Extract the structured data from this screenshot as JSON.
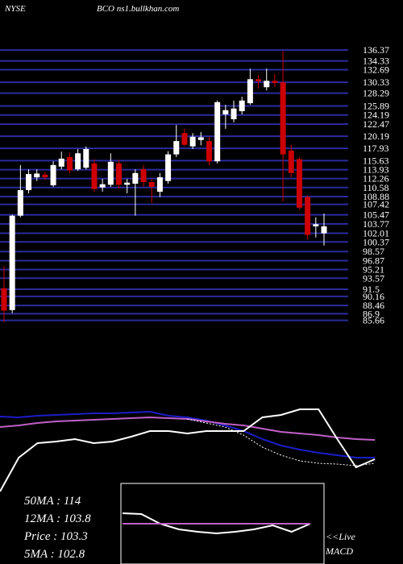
{
  "exchange": "NYSE",
  "title": "BCO ns1.bullkhan.com",
  "summary": [
    "50MA : 114",
    "12MA : 103.8",
    "Price : 103.3",
    "5MA : 102.8"
  ],
  "live": "<<Live",
  "panel_label": "MACD",
  "chart_data": [
    {
      "type": "candlestick",
      "up_color": "#ffffff",
      "down_color": "#cc0000",
      "grid": true,
      "grid_color": "#2b2b9e",
      "ylim": [
        85,
        137.9
      ],
      "yticks": [
        136.37,
        134.33,
        132.69,
        130.33,
        128.29,
        125.89,
        124.19,
        122.47,
        120.19,
        117.93,
        115.63,
        113.93,
        112.26,
        110.58,
        108.88,
        107.42,
        105.47,
        103.77,
        102.01,
        100.37,
        98.57,
        96.87,
        95.21,
        93.57,
        91.5,
        90.16,
        88.46,
        86.9,
        85.66
      ],
      "open": [
        91.7,
        87.6,
        105.3,
        110.1,
        112.5,
        113,
        111,
        114.5,
        116.3,
        114,
        114.3,
        115.1,
        110.6,
        111.1,
        115.1,
        111.1,
        111.3,
        114,
        111.6,
        109.8,
        111.8,
        116.8,
        120.8,
        118.3,
        119.5,
        119.3,
        115.5,
        124.3,
        123.4,
        124.9,
        126.4,
        130.9,
        129.4,
        130.6,
        130.3,
        117.5,
        115.9,
        108.8,
        103.3,
        102
      ],
      "high": [
        95.9,
        105.5,
        114.8,
        114,
        114,
        113.5,
        115.5,
        117.3,
        117.1,
        117.8,
        118.3,
        115.9,
        112.2,
        117,
        115.8,
        112.2,
        114,
        114.8,
        112.2,
        113.3,
        117.4,
        122.3,
        121.6,
        120.8,
        121,
        120.1,
        126.9,
        126.1,
        126.9,
        127.6,
        132.9,
        131.7,
        132.9,
        131.9,
        136.2,
        118.6,
        116.3,
        109.1,
        105,
        105.7
      ],
      "low": [
        85.3,
        87,
        105,
        109.5,
        111.8,
        112,
        110.7,
        114,
        113.3,
        113.7,
        114,
        109.8,
        109.8,
        110.7,
        110.4,
        109.5,
        105.3,
        110.7,
        107.7,
        108.8,
        111.3,
        116.3,
        118.3,
        117.8,
        118.5,
        114.8,
        115.1,
        121.6,
        122.8,
        124.3,
        126.1,
        129.1,
        128.8,
        129.4,
        108,
        112.5,
        106.5,
        100.8,
        101.2,
        99.7
      ],
      "close": [
        87.5,
        105.3,
        110.1,
        113.1,
        113.2,
        112.5,
        114.8,
        116,
        113.8,
        117,
        117.8,
        110.3,
        111.2,
        115.4,
        111.1,
        111.5,
        113.3,
        111.6,
        110.7,
        112.5,
        116.8,
        119.3,
        118.6,
        120.1,
        120,
        115.5,
        126.6,
        125.1,
        125.4,
        126.9,
        130.9,
        130.5,
        130.6,
        130.2,
        116.8,
        113.3,
        106.8,
        101.7,
        103.7,
        103.3
      ]
    },
    {
      "type": "line",
      "xlim": [
        0,
        100
      ],
      "ylim": [
        0,
        120
      ],
      "x": [
        0,
        5,
        10,
        15,
        20,
        25,
        30,
        35,
        40,
        45,
        50,
        55,
        60,
        65,
        70,
        75,
        80,
        85,
        90,
        95,
        100
      ],
      "series": [
        {
          "color": "#1c1cc8",
          "dash": false,
          "values": [
            103,
            102,
            104,
            105,
            106,
            107,
            107,
            108,
            109,
            104,
            102,
            98,
            92,
            85,
            75,
            67,
            62,
            58,
            55,
            52,
            52
          ]
        },
        {
          "color": "#c060c8",
          "dash": false,
          "values": [
            90,
            92,
            95,
            97,
            98,
            99,
            100,
            101,
            102,
            101,
            100,
            97,
            94,
            92,
            88,
            84,
            82,
            80,
            77,
            75,
            74
          ]
        },
        {
          "color": "#ffffff",
          "dash": false,
          "values": [
            10,
            52,
            70,
            72,
            75,
            70,
            72,
            78,
            85,
            85,
            82,
            85,
            85,
            85,
            102,
            105,
            112,
            112,
            75,
            40,
            50
          ]
        },
        {
          "color": "#ffffff",
          "dash": true,
          "values": [
            null,
            null,
            null,
            null,
            null,
            null,
            null,
            null,
            null,
            null,
            100,
            95,
            90,
            80,
            65,
            55,
            48,
            45,
            44,
            42,
            45
          ]
        }
      ]
    },
    {
      "type": "line",
      "xlim": [
        0,
        100
      ],
      "ylim": [
        -5,
        5
      ],
      "x": [
        0,
        10,
        20,
        30,
        40,
        50,
        60,
        70,
        80,
        90,
        100
      ],
      "series": [
        {
          "color": "#ffffff",
          "dash": false,
          "values": [
            1.3,
            1.2,
            0,
            -0.7,
            -1,
            -1.2,
            -1,
            -0.7,
            -0.2,
            -1,
            0
          ]
        },
        {
          "color": "#c060c8",
          "dash": false,
          "values": [
            0,
            0,
            0,
            0,
            0,
            0,
            0,
            0,
            0,
            0,
            0
          ]
        }
      ]
    }
  ]
}
